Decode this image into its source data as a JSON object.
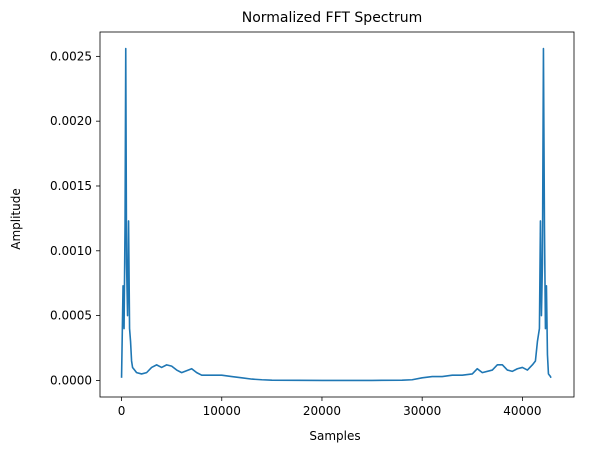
{
  "chart_data": {
    "type": "line",
    "title": "Normalized FFT Spectrum",
    "xlabel": "Samples",
    "ylabel": "Amplitude",
    "xlim": [
      -2150,
      45150
    ],
    "ylim": [
      -0.000128,
      0.002688
    ],
    "xticks": [
      0,
      10000,
      20000,
      30000,
      40000
    ],
    "xtick_labels": [
      "0",
      "10000",
      "20000",
      "30000",
      "40000"
    ],
    "yticks": [
      0.0,
      0.0005,
      0.001,
      0.0015,
      0.002,
      0.0025
    ],
    "ytick_labels": [
      "0.0000",
      "0.0005",
      "0.0010",
      "0.0015",
      "0.0020",
      "0.0025"
    ],
    "grid": false,
    "series": [
      {
        "color": "#1f77b4",
        "x": [
          0,
          150,
          250,
          350,
          420,
          500,
          600,
          700,
          800,
          900,
          1000,
          1100,
          1300,
          1500,
          2000,
          2500,
          3000,
          3500,
          4000,
          4500,
          5000,
          5500,
          6000,
          7000,
          7500,
          8000,
          9000,
          10000,
          11000,
          12000,
          13000,
          14000,
          15000,
          20000,
          25000,
          28000,
          29000,
          30000,
          31000,
          32000,
          33000,
          34000,
          35000,
          35500,
          36000,
          37000,
          37500,
          38000,
          38500,
          39000,
          39500,
          40000,
          40500,
          41000,
          41300,
          41500,
          41700,
          41800,
          41900,
          42000,
          42100,
          42200,
          42300,
          42400,
          42500,
          42600,
          42700,
          42800,
          42850
        ],
        "y": [
          2e-05,
          0.00073,
          0.0004,
          0.0012,
          0.00256,
          0.0009,
          0.0005,
          0.00123,
          0.0004,
          0.0003,
          0.00015,
          0.0001,
          8e-05,
          6e-05,
          5e-05,
          6e-05,
          0.0001,
          0.00012,
          0.0001,
          0.00012,
          0.00011,
          8e-05,
          6e-05,
          9e-05,
          6e-05,
          4e-05,
          4e-05,
          4e-05,
          3e-05,
          2e-05,
          1e-05,
          5e-06,
          2e-06,
          0.0,
          0.0,
          2e-06,
          5e-06,
          2e-05,
          3e-05,
          3e-05,
          4e-05,
          4e-05,
          5e-05,
          9e-05,
          6e-05,
          8e-05,
          0.00012,
          0.00012,
          8e-05,
          7e-05,
          9e-05,
          0.0001,
          8e-05,
          0.00012,
          0.00015,
          0.0003,
          0.0004,
          0.00123,
          0.0005,
          0.0009,
          0.00256,
          0.0012,
          0.0004,
          0.00073,
          0.0002,
          5e-05,
          4e-05,
          3e-05,
          2e-05
        ]
      }
    ]
  }
}
